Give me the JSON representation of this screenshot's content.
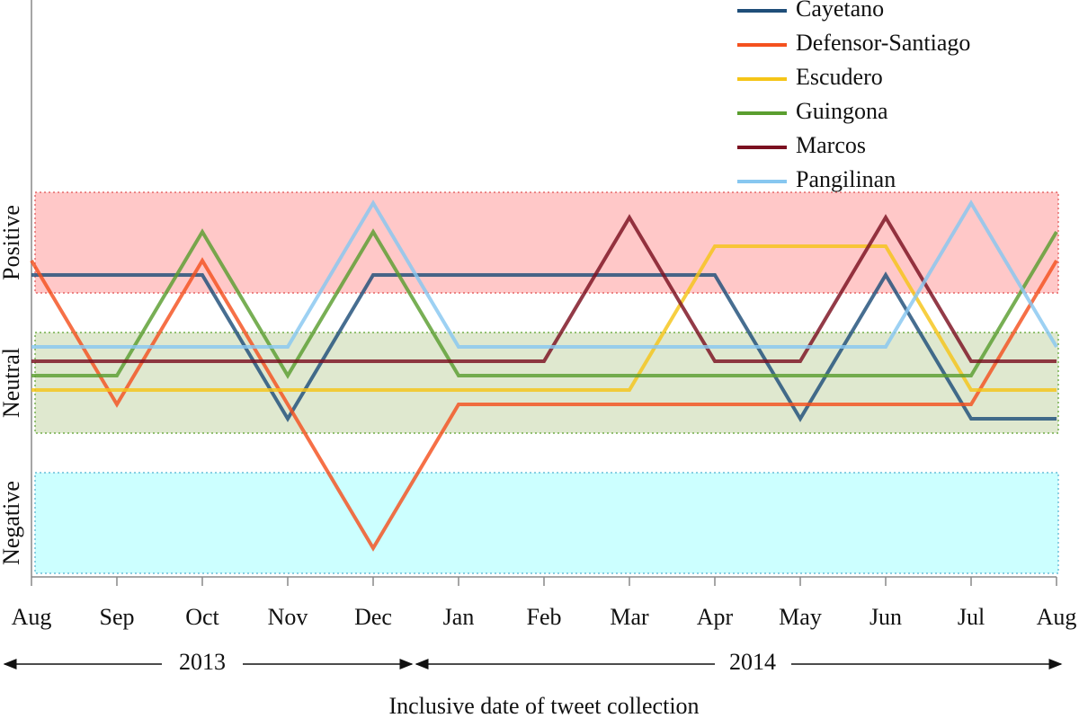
{
  "chart_data": {
    "type": "line",
    "x_label": "Inclusive date of tweet collection",
    "categories": [
      "Aug",
      "Sep",
      "Oct",
      "Nov",
      "Dec",
      "Jan",
      "Feb",
      "Mar",
      "Apr",
      "May",
      "Jun",
      "Jul",
      "Aug"
    ],
    "year_labels": [
      "2013",
      "2014"
    ],
    "ylim": [
      0,
      40
    ],
    "bands": [
      {
        "label": "Positive",
        "range": [
          19.75,
          26.75
        ],
        "color": "#ffc8c8",
        "border": "#e05050"
      },
      {
        "label": "Neutral",
        "range": [
          10,
          17
        ],
        "color": "#dfe8cf",
        "border": "#5aa02c"
      },
      {
        "label": "Negative",
        "range": [
          0.25,
          7.25
        ],
        "color": "#ccffff",
        "border": "#4fb0d0"
      }
    ],
    "legend": "upper right",
    "series": [
      {
        "name": "Cayetano",
        "color": "#1f4e79",
        "values": [
          21,
          21,
          21,
          11,
          21,
          21,
          21,
          21,
          21,
          11,
          21,
          11,
          11
        ]
      },
      {
        "name": "Defensor-Santiago",
        "color": "#f4511e",
        "values": [
          22,
          12,
          22,
          12,
          2,
          12,
          12,
          12,
          12,
          12,
          12,
          12,
          22
        ]
      },
      {
        "name": "Escudero",
        "color": "#f5c518",
        "values": [
          13,
          13,
          13,
          13,
          13,
          13,
          13,
          13,
          23,
          23,
          23,
          13,
          13
        ]
      },
      {
        "name": "Guingona",
        "color": "#5a9e2f",
        "values": [
          14,
          14,
          24,
          14,
          24,
          14,
          14,
          14,
          14,
          14,
          14,
          14,
          24
        ]
      },
      {
        "name": "Marcos",
        "color": "#7b1020",
        "values": [
          15,
          15,
          15,
          15,
          15,
          15,
          15,
          25,
          15,
          15,
          25,
          15,
          15
        ]
      },
      {
        "name": "Pangilinan",
        "color": "#87c7f0",
        "values": [
          16,
          16,
          16,
          16,
          26,
          16,
          16,
          16,
          16,
          16,
          16,
          26,
          16
        ]
      }
    ]
  }
}
